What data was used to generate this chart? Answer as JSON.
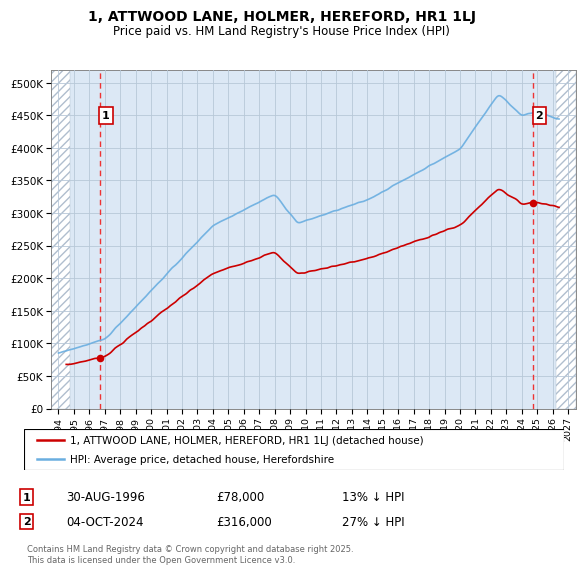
{
  "title": "1, ATTWOOD LANE, HOLMER, HEREFORD, HR1 1LJ",
  "subtitle": "Price paid vs. HM Land Registry's House Price Index (HPI)",
  "ylim": [
    0,
    520000
  ],
  "xlim_start": 1993.5,
  "xlim_end": 2027.5,
  "hpi_color": "#6aaee0",
  "price_color": "#cc0000",
  "marker_color": "#cc0000",
  "vline_color": "#ee3333",
  "bg_fill_color": "#dce8f5",
  "hatch_color": "#b0bece",
  "grid_color": "#b8c8d8",
  "legend_label_price": "1, ATTWOOD LANE, HOLMER, HEREFORD, HR1 1LJ (detached house)",
  "legend_label_hpi": "HPI: Average price, detached house, Herefordshire",
  "point1_date": 1996.67,
  "point1_price": 78000,
  "point1_label": "1",
  "point2_date": 2024.75,
  "point2_price": 316000,
  "point2_label": "2",
  "hatch_left_end": 1994.75,
  "hatch_right_start": 2026.25,
  "footer": "Contains HM Land Registry data © Crown copyright and database right 2025.\nThis data is licensed under the Open Government Licence v3.0.",
  "ytick_labels": [
    "£0",
    "£50K",
    "£100K",
    "£150K",
    "£200K",
    "£250K",
    "£300K",
    "£350K",
    "£400K",
    "£450K",
    "£500K"
  ],
  "ytick_values": [
    0,
    50000,
    100000,
    150000,
    200000,
    250000,
    300000,
    350000,
    400000,
    450000,
    500000
  ]
}
